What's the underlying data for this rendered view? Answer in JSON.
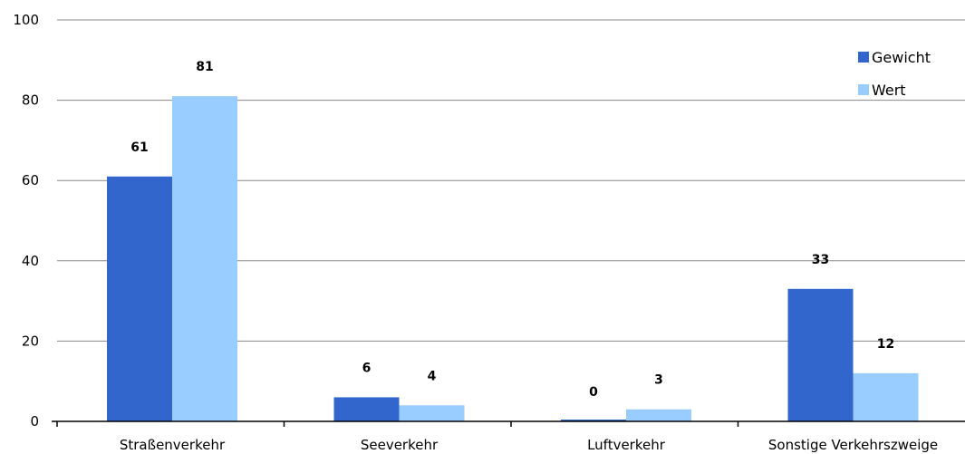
{
  "chart_data": {
    "type": "bar",
    "categories": [
      "Straßenverkehr",
      "Seeverkehr",
      "Luftverkehr",
      "Sonstige Verkehrszweige"
    ],
    "series": [
      {
        "name": "Gewicht",
        "values": [
          61,
          6,
          0,
          33
        ],
        "color": "#3366CC"
      },
      {
        "name": "Wert",
        "values": [
          81,
          4,
          3,
          12
        ],
        "color": "#99CCFF"
      }
    ],
    "ylim": [
      0,
      100
    ],
    "yticks": [
      0,
      20,
      40,
      60,
      80,
      100
    ],
    "grid": true,
    "legend": "top-right",
    "gridline_color": "#888888"
  }
}
